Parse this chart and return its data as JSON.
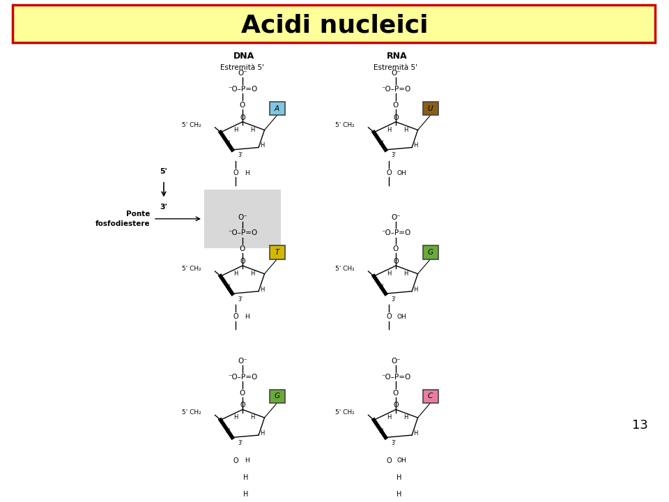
{
  "title": "Acidi nucleici",
  "title_bg": "#ffff99",
  "title_border": "#cc0000",
  "title_fontsize": 26,
  "page_number": "13",
  "background": "#ffffff",
  "dna_label": "DNA",
  "rna_label": "RNA",
  "base_colors": {
    "A": "#7ec8e3",
    "U": "#8b5e15",
    "T": "#d4b800",
    "G_dna": "#6aaa3a",
    "G_rna": "#6aaa3a",
    "C": "#e87fa0"
  }
}
